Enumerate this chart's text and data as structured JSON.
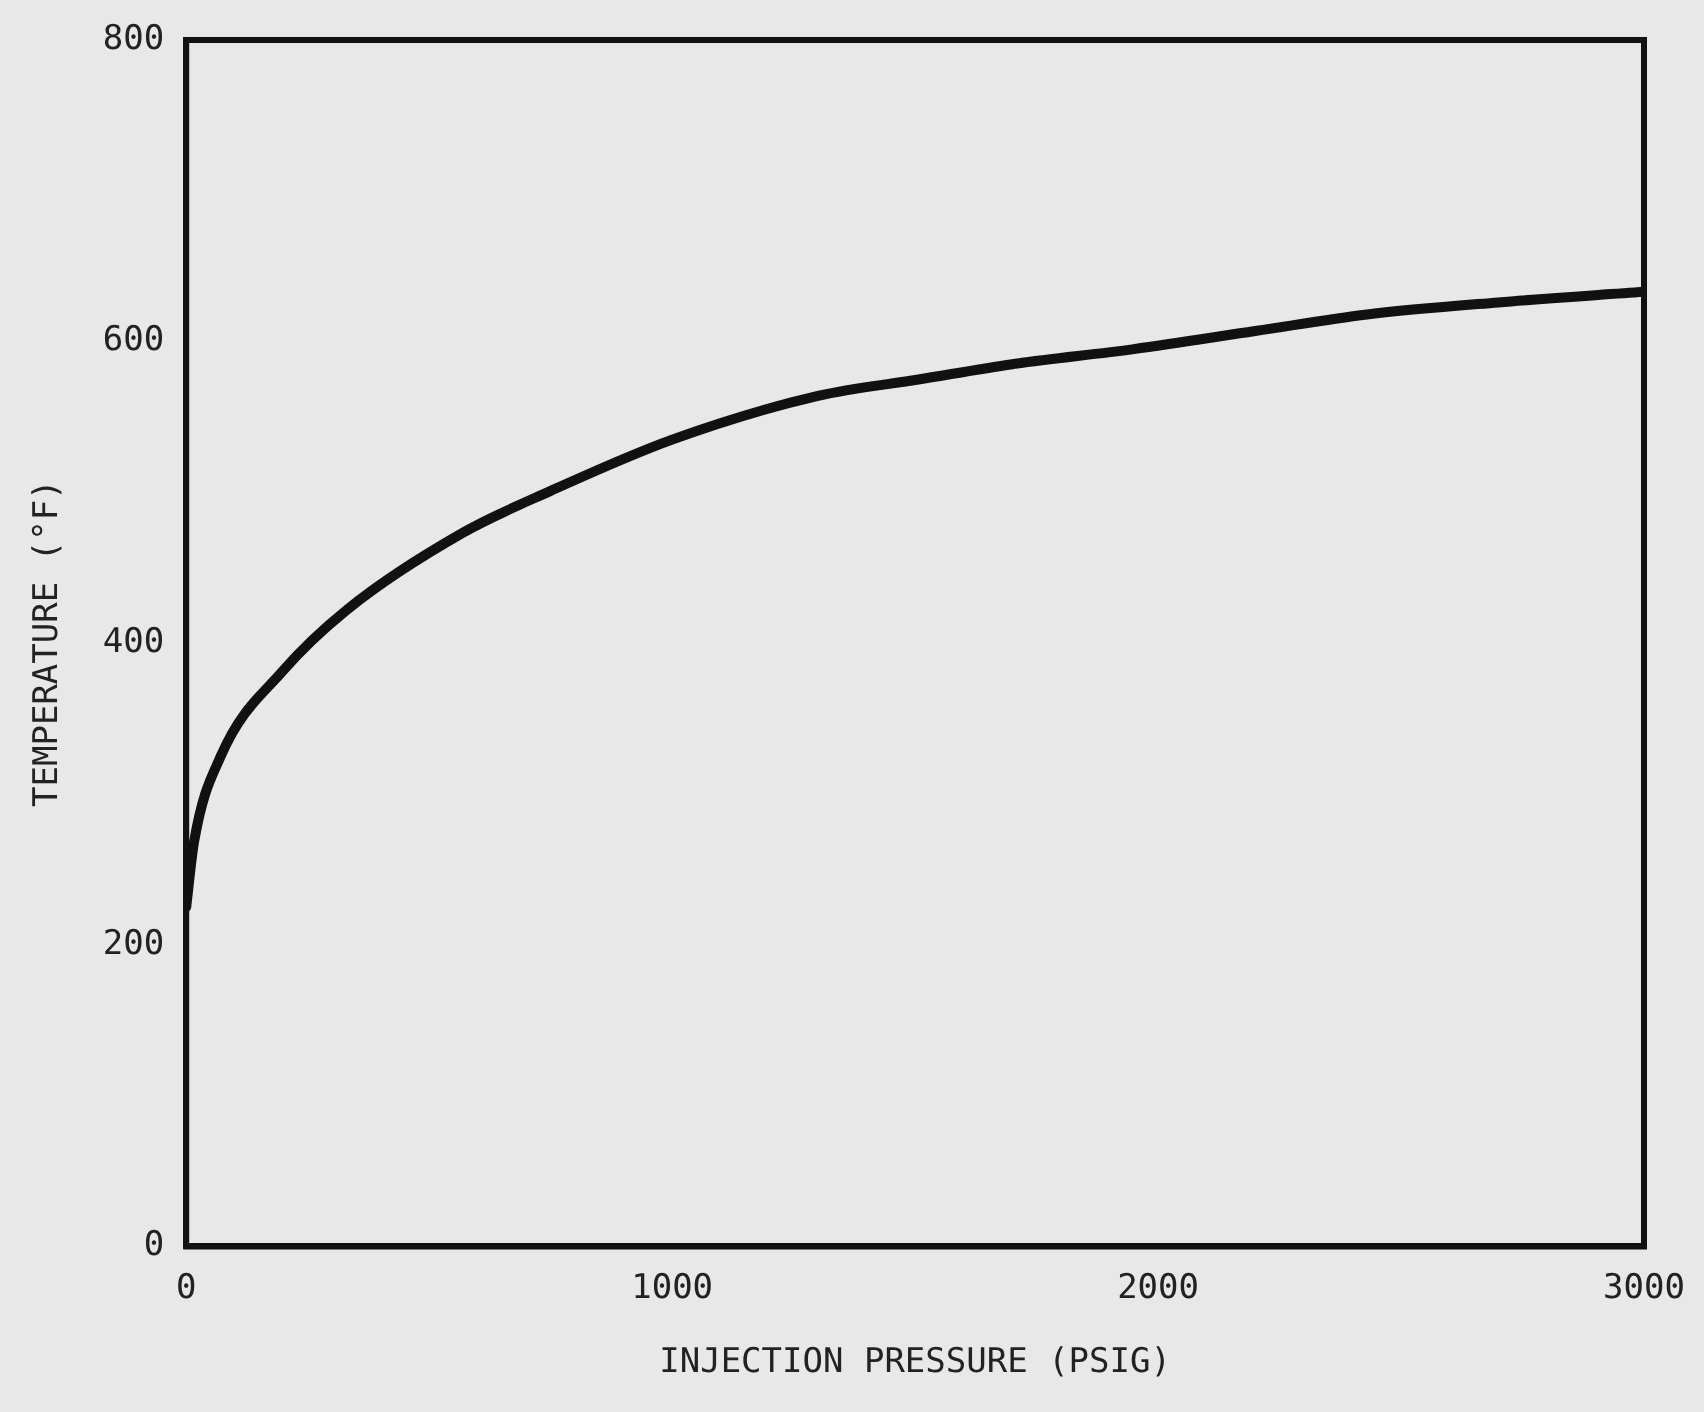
{
  "chart_data": {
    "type": "line",
    "xlabel": "INJECTION PRESSURE (PSIG)",
    "ylabel": "TEMPERATURE (°F)",
    "series": [
      {
        "color": "#111111",
        "x": [
          0,
          16,
          71,
          200,
          330,
          568,
          750,
          1000,
          1300,
          1510,
          1700,
          1950,
          2200,
          2430,
          2700,
          3000
        ],
        "values": [
          225,
          268,
          325,
          382,
          422,
          473,
          501,
          535,
          564,
          575,
          585,
          595,
          607,
          618,
          626,
          633
        ]
      }
    ],
    "xlim": [
      0,
      3000
    ],
    "xticks": [
      0,
      1000,
      2000,
      3000
    ],
    "ylim": [
      0,
      800
    ],
    "yticks": [
      0,
      200,
      400,
      600,
      800
    ],
    "grid": false,
    "legend": false,
    "marker": "none",
    "line_style": "solid"
  }
}
